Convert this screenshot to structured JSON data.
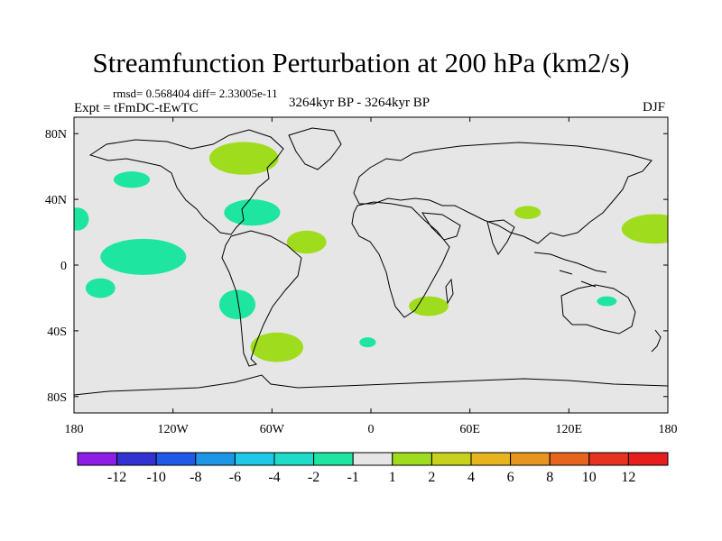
{
  "chart_data": {
    "type": "map-contour",
    "title": "Streamfunction Perturbation at 200 hPa (km2/s)",
    "stats_text": "rmsd= 0.568404  diff= 2.33005e-11",
    "experiment_label": "Expt = tFmDC-tEwTC",
    "period_label": "3264kyr BP - 3264kyr BP",
    "season_label": "DJF",
    "x_range": [
      -180,
      180
    ],
    "y_range": [
      -90,
      90
    ],
    "x_ticks": [
      {
        "value": -180,
        "label": "180"
      },
      {
        "value": -120,
        "label": "120W"
      },
      {
        "value": -60,
        "label": "60W"
      },
      {
        "value": 0,
        "label": "0"
      },
      {
        "value": 60,
        "label": "60E"
      },
      {
        "value": 120,
        "label": "120E"
      },
      {
        "value": 180,
        "label": "180"
      }
    ],
    "y_ticks": [
      {
        "value": 80,
        "label": "80N"
      },
      {
        "value": 40,
        "label": "40N"
      },
      {
        "value": 0,
        "label": "0"
      },
      {
        "value": -40,
        "label": "40S"
      },
      {
        "value": -80,
        "label": "80S"
      }
    ],
    "colorbar": {
      "levels": [
        "-12",
        "-10",
        "-8",
        "-6",
        "-4",
        "-2",
        "-1",
        "1",
        "2",
        "4",
        "6",
        "8",
        "10",
        "12"
      ],
      "colors": [
        "#8c1ee6",
        "#3232d2",
        "#1e5ae6",
        "#1e96e6",
        "#1ec8e6",
        "#1edcc8",
        "#1ee6a0",
        "#e6e6e6",
        "#a0dc1e",
        "#c8d21e",
        "#e6b41e",
        "#e6961e",
        "#e6641e",
        "#e6321e",
        "#e61e1e"
      ]
    },
    "anomalies": [
      {
        "name": "north-canada-positive",
        "lon": -77,
        "lat": 65,
        "rx_deg": 21,
        "ry_deg": 10,
        "category": "1 to 2"
      },
      {
        "name": "alaska-negative",
        "lon": -145,
        "lat": 52,
        "rx_deg": 11,
        "ry_deg": 5,
        "category": "-2 to -1"
      },
      {
        "name": "caribbean-negative",
        "lon": -72,
        "lat": 32,
        "rx_deg": 17,
        "ry_deg": 8,
        "category": "-2 to -1"
      },
      {
        "name": "north-atlantic-positive",
        "lon": -39,
        "lat": 14,
        "rx_deg": 12,
        "ry_deg": 7,
        "category": "1 to 2"
      },
      {
        "name": "central-pacific-negative",
        "lon": -138,
        "lat": 5,
        "rx_deg": 26,
        "ry_deg": 11,
        "category": "-2 to -1"
      },
      {
        "name": "south-pacific-negative",
        "lon": -164,
        "lat": -14,
        "rx_deg": 9,
        "ry_deg": 6,
        "category": "-2 to -1"
      },
      {
        "name": "southeast-pacific-negative",
        "lon": -81,
        "lat": -24,
        "rx_deg": 11,
        "ry_deg": 9,
        "category": "-2 to -1"
      },
      {
        "name": "south-atlantic-positive",
        "lon": -57,
        "lat": -50,
        "rx_deg": 16,
        "ry_deg": 9,
        "category": "1 to 2"
      },
      {
        "name": "southern-ocean-negative",
        "lon": -2,
        "lat": -47,
        "rx_deg": 5,
        "ry_deg": 3,
        "category": "-2 to -1"
      },
      {
        "name": "north-pacific-edge-negative",
        "lon": -178,
        "lat": 28,
        "rx_deg": 7,
        "ry_deg": 7,
        "category": "-2 to -1"
      },
      {
        "name": "tibet-positive",
        "lon": 95,
        "lat": 32,
        "rx_deg": 8,
        "ry_deg": 4,
        "category": "1 to 2"
      },
      {
        "name": "west-pacific-positive",
        "lon": 172,
        "lat": 22,
        "rx_deg": 20,
        "ry_deg": 9,
        "category": "1 to 2"
      },
      {
        "name": "indian-ocean-positive",
        "lon": 35,
        "lat": -25,
        "rx_deg": 12,
        "ry_deg": 6,
        "category": "1 to 2"
      },
      {
        "name": "australia-negative",
        "lon": 143,
        "lat": -22,
        "rx_deg": 6,
        "ry_deg": 3,
        "category": "-2 to -1"
      }
    ]
  }
}
